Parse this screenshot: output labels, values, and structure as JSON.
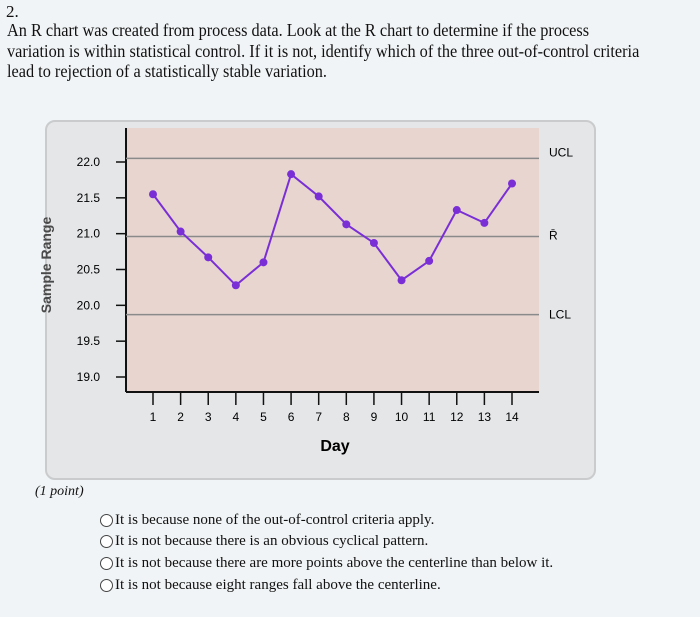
{
  "question": {
    "number": "2.",
    "text": "An R chart was created from process data. Look at the R chart to determine if the process variation is within statistical control. If it is not, identify which of the three out-of-control criteria lead to rejection of a statistically stable variation.",
    "points": "(1 point)",
    "options": [
      "It is because none of the out-of-control criteria apply.",
      "It is not because there is an obvious cyclical pattern.",
      "It is not because there are more points above the centerline than below it.",
      "It is not because eight ranges fall above the centerline."
    ]
  },
  "chart_data": {
    "type": "line",
    "xlabel": "Day",
    "ylabel": "Sample Range",
    "x": [
      1,
      2,
      3,
      4,
      5,
      6,
      7,
      8,
      9,
      10,
      11,
      12,
      13,
      14
    ],
    "y": [
      21.55,
      21.03,
      20.67,
      20.28,
      20.6,
      21.83,
      21.52,
      21.13,
      20.87,
      20.35,
      20.62,
      21.33,
      21.15,
      21.7
    ],
    "ylim": [
      19.0,
      22.3
    ],
    "yticks": [
      "22.0",
      "21.5",
      "21.0",
      "20.5",
      "20.0",
      "19.5",
      "19.0"
    ],
    "xticks": [
      "1",
      "2",
      "3",
      "4",
      "5",
      "6",
      "7",
      "8",
      "9",
      "10",
      "11",
      "12",
      "13",
      "14"
    ],
    "reference_lines": [
      {
        "label": "UCL",
        "value": 22.05
      },
      {
        "label": "R̄",
        "value": 20.96
      },
      {
        "label": "LCL",
        "value": 19.87
      }
    ],
    "grid": false,
    "series_color": "#7a2fd6",
    "plot_background": "#e8d5d0"
  }
}
